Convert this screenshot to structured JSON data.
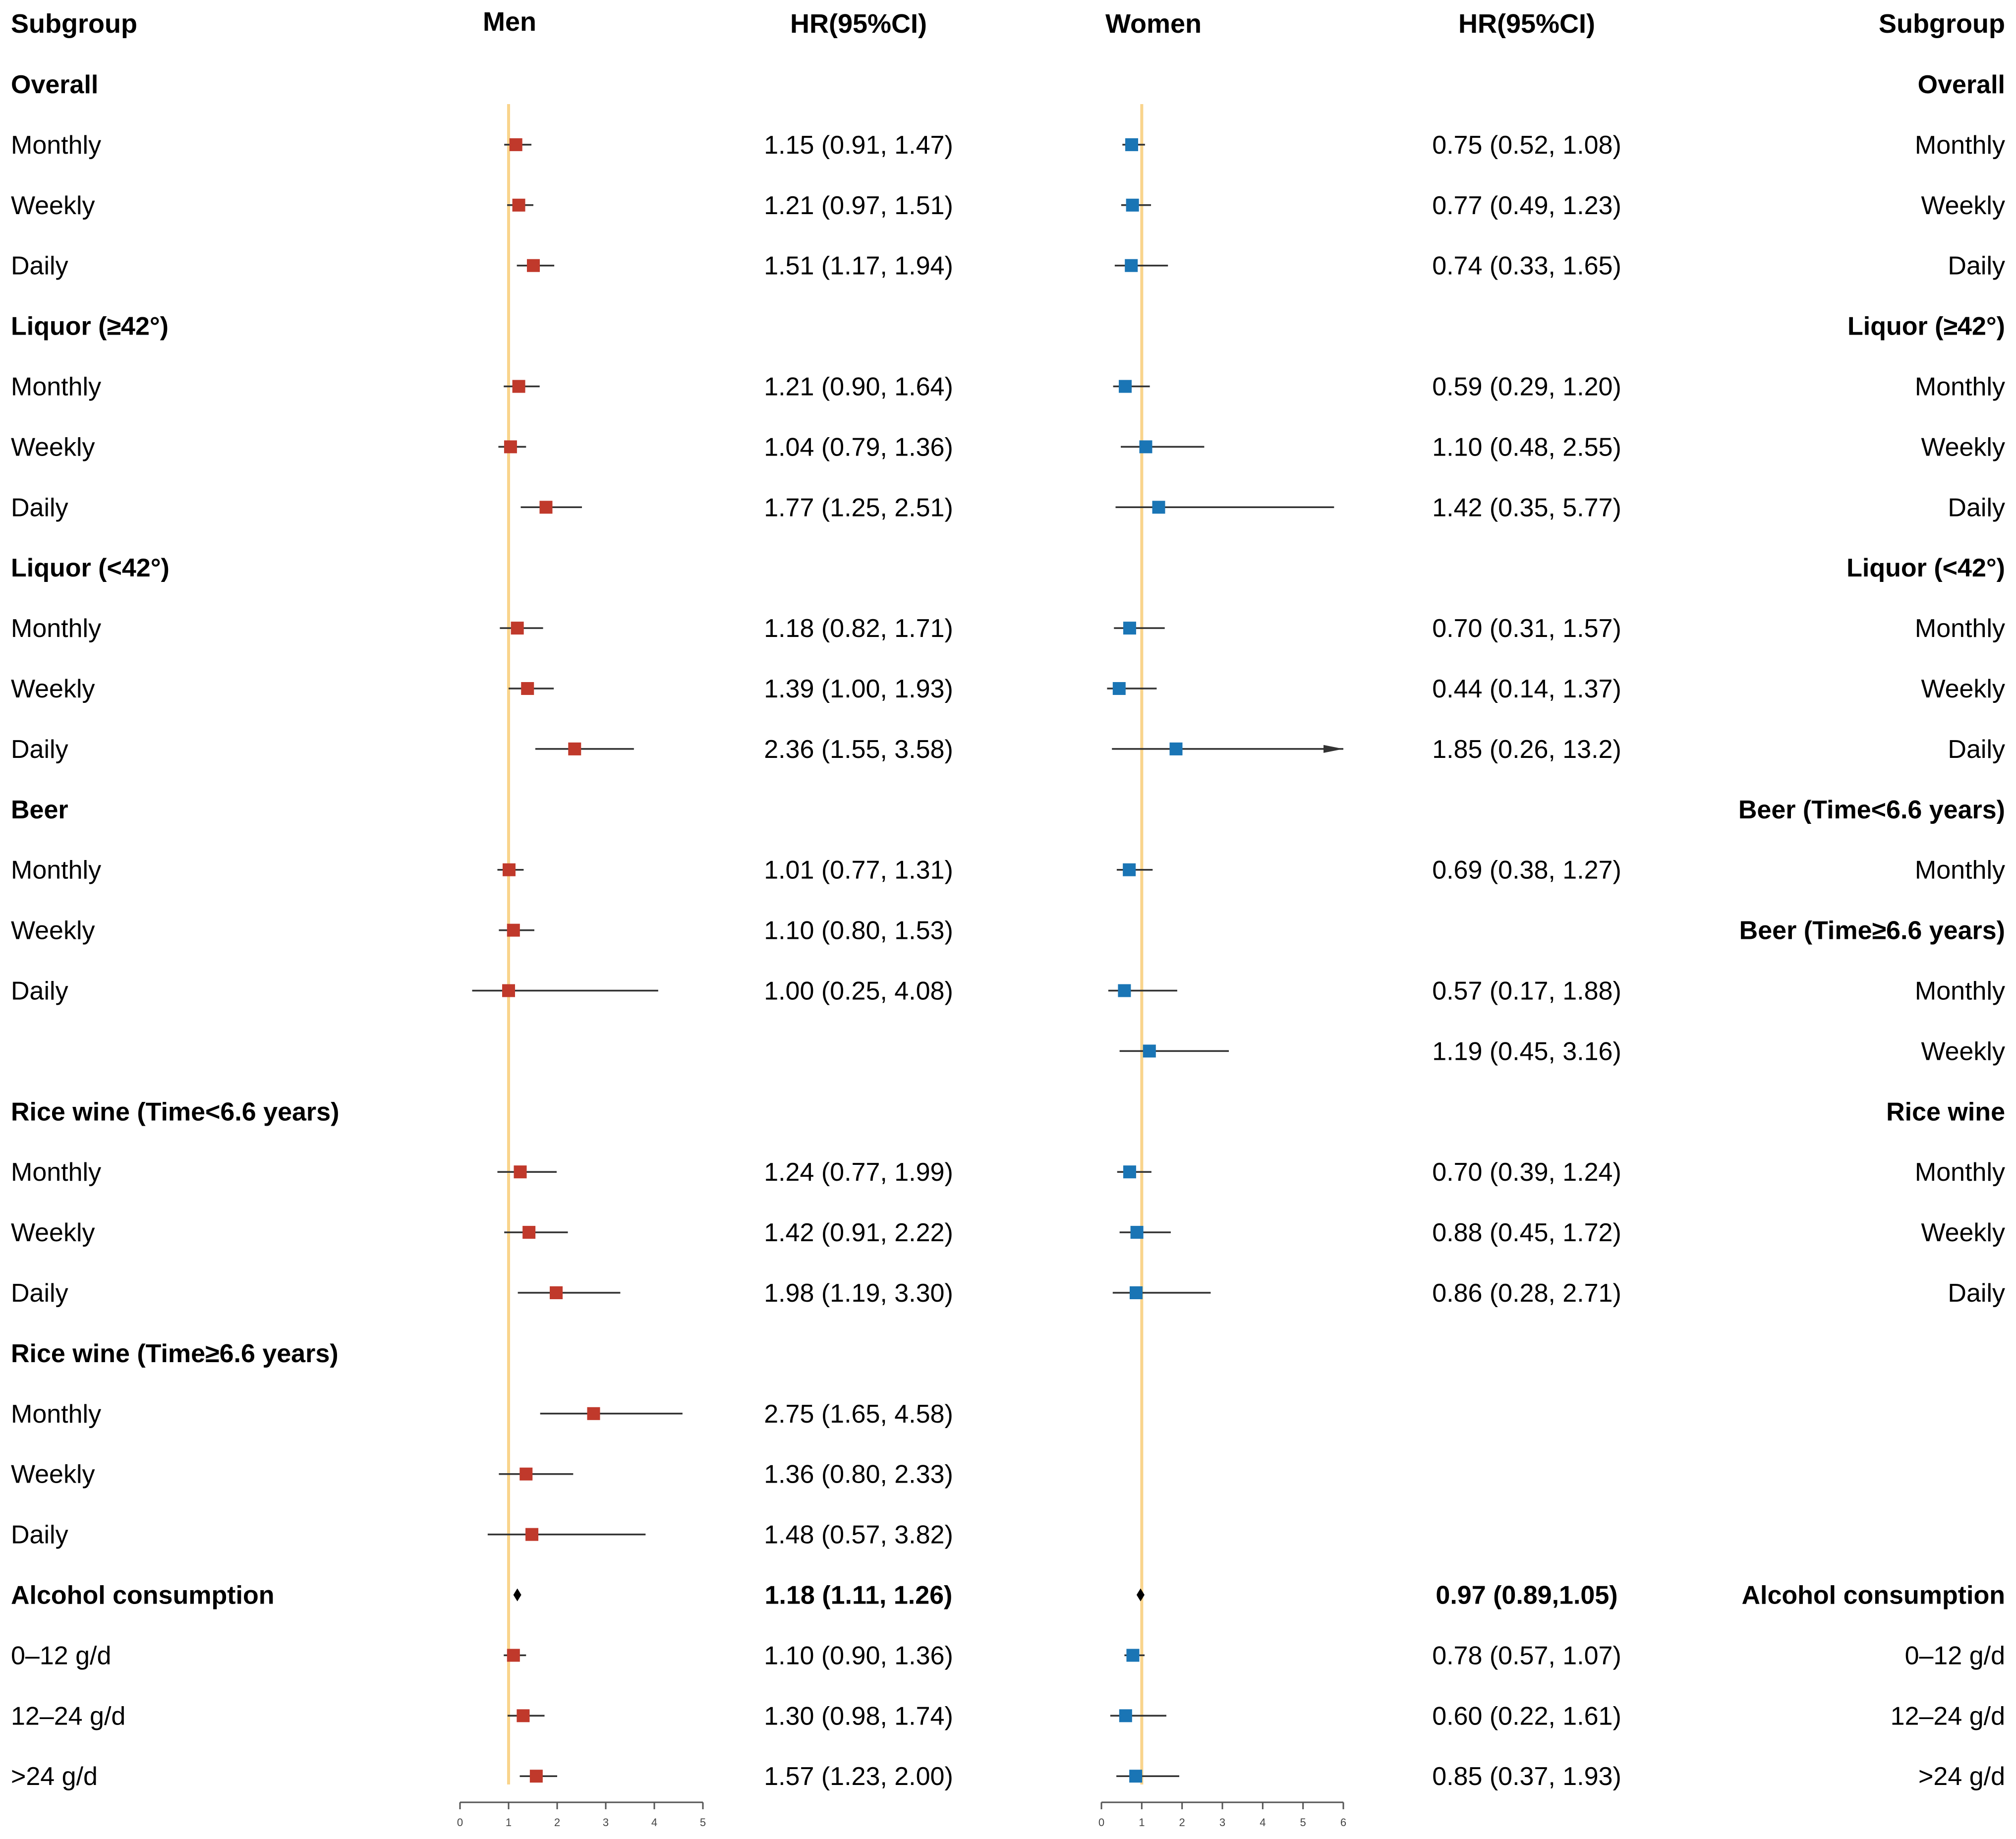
{
  "headers": {
    "subgroup_left": "Subgroup",
    "men": "Men",
    "hr_men": "HR(95%CI)",
    "women": "Women",
    "hr_women": "HR(95%CI)",
    "subgroup_right": "Subgroup"
  },
  "colors": {
    "men_marker": "#C0392B",
    "women_marker": "#1A75B5",
    "reference_line": "#F9D48C",
    "ci_line": "#333333",
    "summary_diamond": "#000000"
  },
  "chart_data": [
    {
      "type": "forest",
      "title": "Men",
      "xlim": [
        0,
        5
      ],
      "xticks": [
        0,
        1,
        2,
        3,
        4,
        5
      ],
      "reference_line": 1,
      "rows": [
        {
          "label": "Overall",
          "kind": "header"
        },
        {
          "label": "Monthly",
          "hr": 1.15,
          "lo": 0.91,
          "hi": 1.47,
          "text": "1.15 (0.91, 1.47)"
        },
        {
          "label": "Weekly",
          "hr": 1.21,
          "lo": 0.97,
          "hi": 1.51,
          "text": "1.21 (0.97, 1.51)"
        },
        {
          "label": "Daily",
          "hr": 1.51,
          "lo": 1.17,
          "hi": 1.94,
          "text": "1.51 (1.17, 1.94)"
        },
        {
          "label": "Liquor (≥42°)",
          "kind": "header"
        },
        {
          "label": "Monthly",
          "hr": 1.21,
          "lo": 0.9,
          "hi": 1.64,
          "text": "1.21 (0.90, 1.64)"
        },
        {
          "label": "Weekly",
          "hr": 1.04,
          "lo": 0.79,
          "hi": 1.36,
          "text": "1.04 (0.79, 1.36)"
        },
        {
          "label": "Daily",
          "hr": 1.77,
          "lo": 1.25,
          "hi": 2.51,
          "text": "1.77 (1.25, 2.51)"
        },
        {
          "label": "Liquor (<42°)",
          "kind": "header"
        },
        {
          "label": "Monthly",
          "hr": 1.18,
          "lo": 0.82,
          "hi": 1.71,
          "text": "1.18 (0.82, 1.71)"
        },
        {
          "label": "Weekly",
          "hr": 1.39,
          "lo": 1.0,
          "hi": 1.93,
          "text": "1.39 (1.00, 1.93)"
        },
        {
          "label": "Daily",
          "hr": 2.36,
          "lo": 1.55,
          "hi": 3.58,
          "text": "2.36 (1.55, 3.58)"
        },
        {
          "label": "Beer",
          "kind": "header"
        },
        {
          "label": "Monthly",
          "hr": 1.01,
          "lo": 0.77,
          "hi": 1.31,
          "text": "1.01 (0.77, 1.31)"
        },
        {
          "label": "Weekly",
          "hr": 1.1,
          "lo": 0.8,
          "hi": 1.53,
          "text": "1.10 (0.80, 1.53)"
        },
        {
          "label": "Daily",
          "hr": 1.0,
          "lo": 0.25,
          "hi": 4.08,
          "text": "1.00 (0.25, 4.08)"
        },
        {
          "label": "",
          "kind": "blank"
        },
        {
          "label": "Rice wine (Time<6.6 years)",
          "kind": "header"
        },
        {
          "label": "Monthly",
          "hr": 1.24,
          "lo": 0.77,
          "hi": 1.99,
          "text": "1.24 (0.77, 1.99)"
        },
        {
          "label": "Weekly",
          "hr": 1.42,
          "lo": 0.91,
          "hi": 2.22,
          "text": "1.42 (0.91, 2.22)"
        },
        {
          "label": "Daily",
          "hr": 1.98,
          "lo": 1.19,
          "hi": 3.3,
          "text": "1.98 (1.19, 3.30)"
        },
        {
          "label": "Rice wine (Time≥6.6 years)",
          "kind": "header"
        },
        {
          "label": "Monthly",
          "hr": 2.75,
          "lo": 1.65,
          "hi": 4.58,
          "text": "2.75 (1.65, 4.58)"
        },
        {
          "label": "Weekly",
          "hr": 1.36,
          "lo": 0.8,
          "hi": 2.33,
          "text": "1.36 (0.80, 2.33)"
        },
        {
          "label": "Daily",
          "hr": 1.48,
          "lo": 0.57,
          "hi": 3.82,
          "text": "1.48 (0.57, 3.82)"
        },
        {
          "label": "Alcohol consumption",
          "kind": "summary",
          "hr": 1.18,
          "lo": 1.11,
          "hi": 1.26,
          "text": "1.18 (1.11, 1.26)"
        },
        {
          "label": "0–12 g/d",
          "hr": 1.1,
          "lo": 0.9,
          "hi": 1.36,
          "text": "1.10 (0.90, 1.36)"
        },
        {
          "label": "12–24 g/d",
          "hr": 1.3,
          "lo": 0.98,
          "hi": 1.74,
          "text": "1.30 (0.98, 1.74)"
        },
        {
          "label": ">24 g/d",
          "hr": 1.57,
          "lo": 1.23,
          "hi": 2.0,
          "text": "1.57 (1.23, 2.00)"
        }
      ]
    },
    {
      "type": "forest",
      "title": "Women",
      "xlim": [
        0,
        6
      ],
      "xticks": [
        0,
        1,
        2,
        3,
        4,
        5,
        6
      ],
      "reference_line": 1,
      "rows": [
        {
          "label": "Overall",
          "kind": "header"
        },
        {
          "label": "Monthly",
          "hr": 0.75,
          "lo": 0.52,
          "hi": 1.08,
          "text": "0.75 (0.52, 1.08)"
        },
        {
          "label": "Weekly",
          "hr": 0.77,
          "lo": 0.49,
          "hi": 1.23,
          "text": "0.77 (0.49, 1.23)"
        },
        {
          "label": "Daily",
          "hr": 0.74,
          "lo": 0.33,
          "hi": 1.65,
          "text": "0.74 (0.33, 1.65)"
        },
        {
          "label": "Liquor (≥42°)",
          "kind": "header"
        },
        {
          "label": "Monthly",
          "hr": 0.59,
          "lo": 0.29,
          "hi": 1.2,
          "text": "0.59 (0.29, 1.20)"
        },
        {
          "label": "Weekly",
          "hr": 1.1,
          "lo": 0.48,
          "hi": 2.55,
          "text": "1.10 (0.48, 2.55)"
        },
        {
          "label": "Daily",
          "hr": 1.42,
          "lo": 0.35,
          "hi": 5.77,
          "text": "1.42 (0.35, 5.77)"
        },
        {
          "label": "Liquor (<42°)",
          "kind": "header"
        },
        {
          "label": "Monthly",
          "hr": 0.7,
          "lo": 0.31,
          "hi": 1.57,
          "text": "0.70 (0.31, 1.57)"
        },
        {
          "label": "Weekly",
          "hr": 0.44,
          "lo": 0.14,
          "hi": 1.37,
          "text": "0.44 (0.14, 1.37)"
        },
        {
          "label": "Daily",
          "hr": 1.85,
          "lo": 0.26,
          "hi": 13.2,
          "text": "1.85 (0.26, 13.2)",
          "arrow": true
        },
        {
          "label": "Beer (Time<6.6 years)",
          "kind": "header"
        },
        {
          "label": "Monthly",
          "hr": 0.69,
          "lo": 0.38,
          "hi": 1.27,
          "text": "0.69 (0.38, 1.27)"
        },
        {
          "label": "Beer (Time≥6.6 years)",
          "kind": "header"
        },
        {
          "label": "Monthly",
          "hr": 0.57,
          "lo": 0.17,
          "hi": 1.88,
          "text": "0.57 (0.17, 1.88)"
        },
        {
          "label": "Weekly",
          "hr": 1.19,
          "lo": 0.45,
          "hi": 3.16,
          "text": "1.19 (0.45, 3.16)"
        },
        {
          "label": "Rice wine",
          "kind": "header"
        },
        {
          "label": "Monthly",
          "hr": 0.7,
          "lo": 0.39,
          "hi": 1.24,
          "text": "0.70 (0.39, 1.24)"
        },
        {
          "label": "Weekly",
          "hr": 0.88,
          "lo": 0.45,
          "hi": 1.72,
          "text": "0.88 (0.45, 1.72)"
        },
        {
          "label": "Daily",
          "hr": 0.86,
          "lo": 0.28,
          "hi": 2.71,
          "text": "0.86 (0.28, 2.71)"
        },
        {
          "label": "",
          "kind": "blank"
        },
        {
          "label": "",
          "kind": "blank"
        },
        {
          "label": "",
          "kind": "blank"
        },
        {
          "label": "",
          "kind": "blank"
        },
        {
          "label": "Alcohol consumption",
          "kind": "summary",
          "hr": 0.97,
          "lo": 0.89,
          "hi": 1.05,
          "text": "0.97 (0.89,1.05)"
        },
        {
          "label": "0–12 g/d",
          "hr": 0.78,
          "lo": 0.57,
          "hi": 1.07,
          "text": "0.78 (0.57, 1.07)"
        },
        {
          "label": "12–24 g/d",
          "hr": 0.6,
          "lo": 0.22,
          "hi": 1.61,
          "text": "0.60 (0.22, 1.61)"
        },
        {
          "label": ">24 g/d",
          "hr": 0.85,
          "lo": 0.37,
          "hi": 1.93,
          "text": "0.85 (0.37, 1.93)"
        }
      ]
    }
  ]
}
